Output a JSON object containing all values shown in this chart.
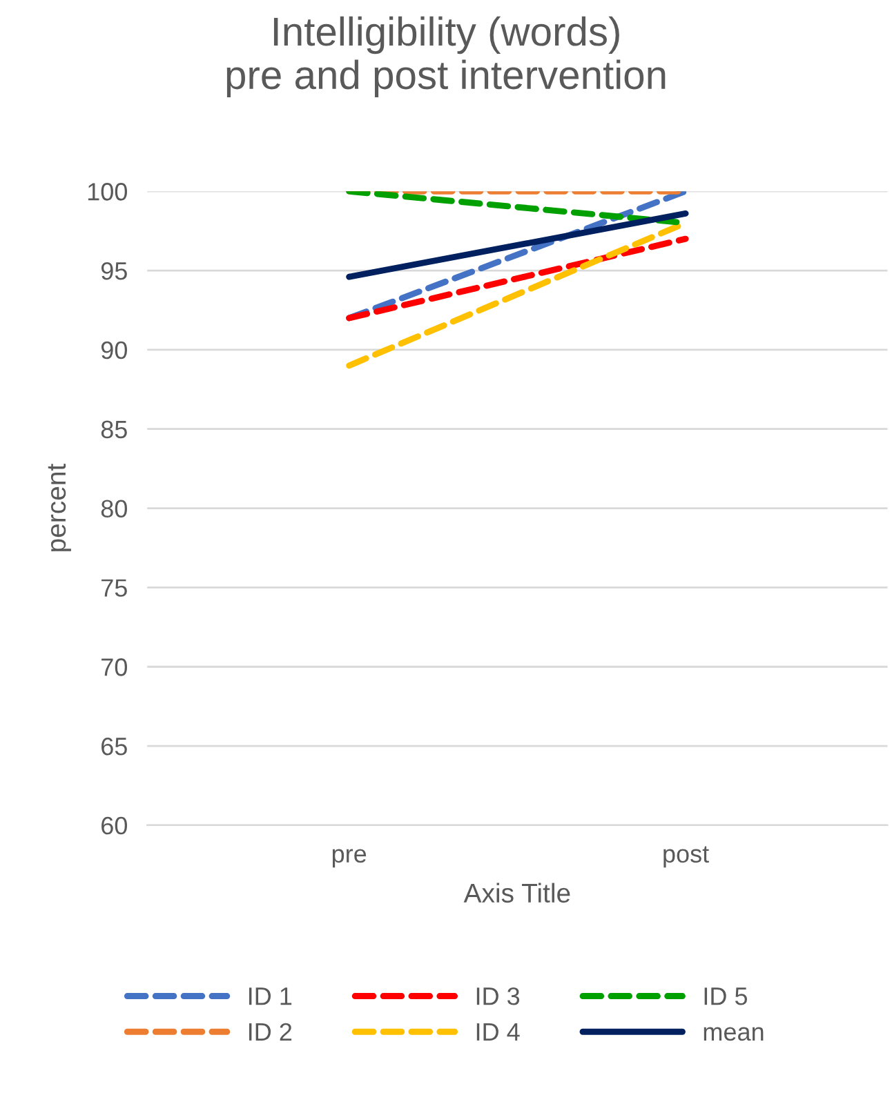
{
  "chart_data": {
    "type": "line",
    "title": "Intelligibility (words)\npre and post intervention",
    "xlabel": "Axis Title",
    "ylabel": "percent",
    "categories": [
      "pre",
      "post"
    ],
    "series": [
      {
        "name": "ID 1",
        "color": "#4472c4",
        "values": [
          92,
          100
        ],
        "line_style": "dashed"
      },
      {
        "name": "ID 2",
        "color": "#ed7d31",
        "values": [
          100,
          100
        ],
        "line_style": "dashed"
      },
      {
        "name": "ID 3",
        "color": "#ff0000",
        "values": [
          92,
          97
        ],
        "line_style": "dashed"
      },
      {
        "name": "ID 4",
        "color": "#ffc000",
        "values": [
          89,
          98
        ],
        "line_style": "dashed"
      },
      {
        "name": "ID 5",
        "color": "#00a000",
        "values": [
          100,
          98
        ],
        "line_style": "dashed"
      },
      {
        "name": "mean",
        "color": "#002060",
        "values": [
          94.6,
          98.6
        ],
        "line_style": "solid"
      }
    ],
    "ylim": [
      60,
      100
    ],
    "yticks": [
      60,
      65,
      70,
      75,
      80,
      85,
      90,
      95,
      100
    ],
    "grid": "y",
    "legend": "bottom"
  }
}
